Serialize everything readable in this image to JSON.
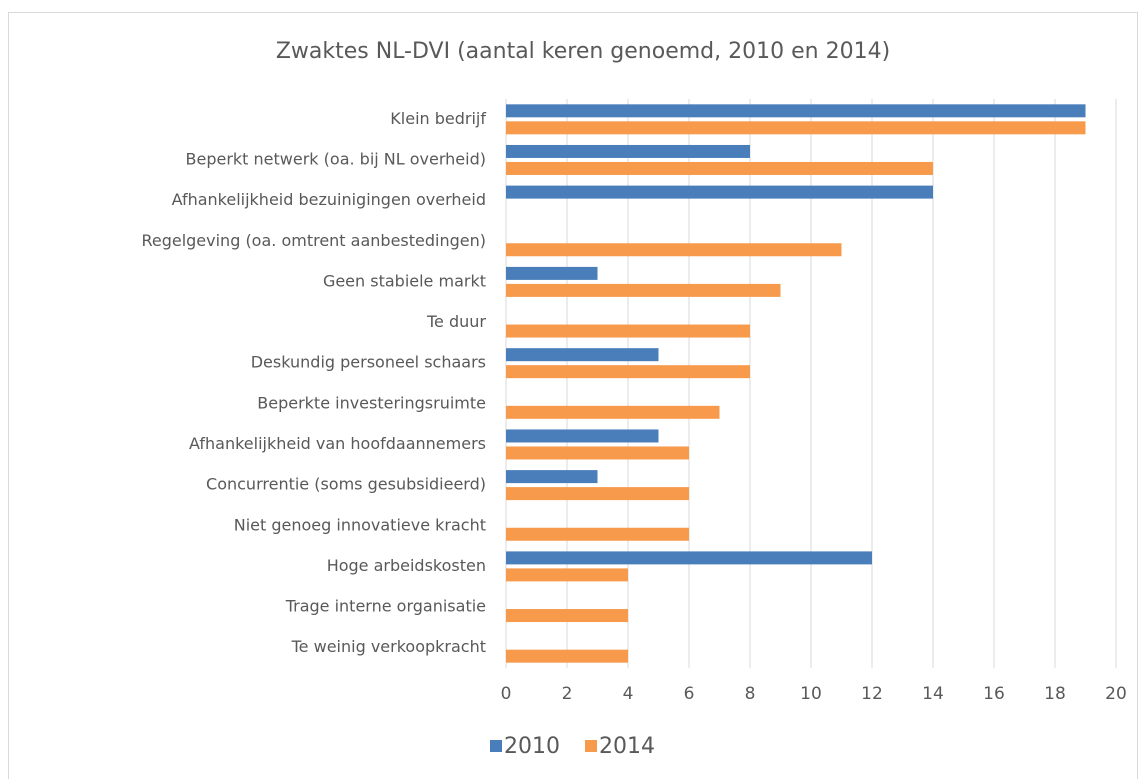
{
  "chart_data": {
    "type": "hbar",
    "title": "Zwaktes NL-DVI (aantal keren genoemd, 2010 en 2014)",
    "categories": [
      "Klein bedrijf",
      "Beperkt netwerk (oa. bij NL overheid)",
      "Afhankelijkheid bezuinigingen overheid",
      "Regelgeving (oa. omtrent aanbestedingen)",
      "Geen stabiele markt",
      "Te duur",
      "Deskundig personeel schaars",
      "Beperkte investeringsruimte",
      "Afhankelijkheid van hoofdaannemers",
      "Concurrentie (soms gesubsidieerd)",
      "Niet genoeg innovatieve kracht",
      "Hoge arbeidskosten",
      "Trage interne organisatie",
      "Te weinig verkoopkracht"
    ],
    "series": [
      {
        "name": "2010",
        "color": "#4a7ebb",
        "values": [
          19,
          8,
          14,
          null,
          3,
          null,
          5,
          null,
          5,
          3,
          null,
          12,
          null,
          null
        ]
      },
      {
        "name": "2014",
        "color": "#f79a4c",
        "values": [
          19,
          14,
          null,
          11,
          9,
          8,
          8,
          7,
          6,
          6,
          6,
          4,
          4,
          4
        ]
      }
    ],
    "xlim": [
      0,
      20
    ],
    "xticks": [
      0,
      2,
      4,
      6,
      8,
      10,
      12,
      14,
      16,
      18,
      20
    ],
    "grid": true,
    "legend": "bottom"
  }
}
